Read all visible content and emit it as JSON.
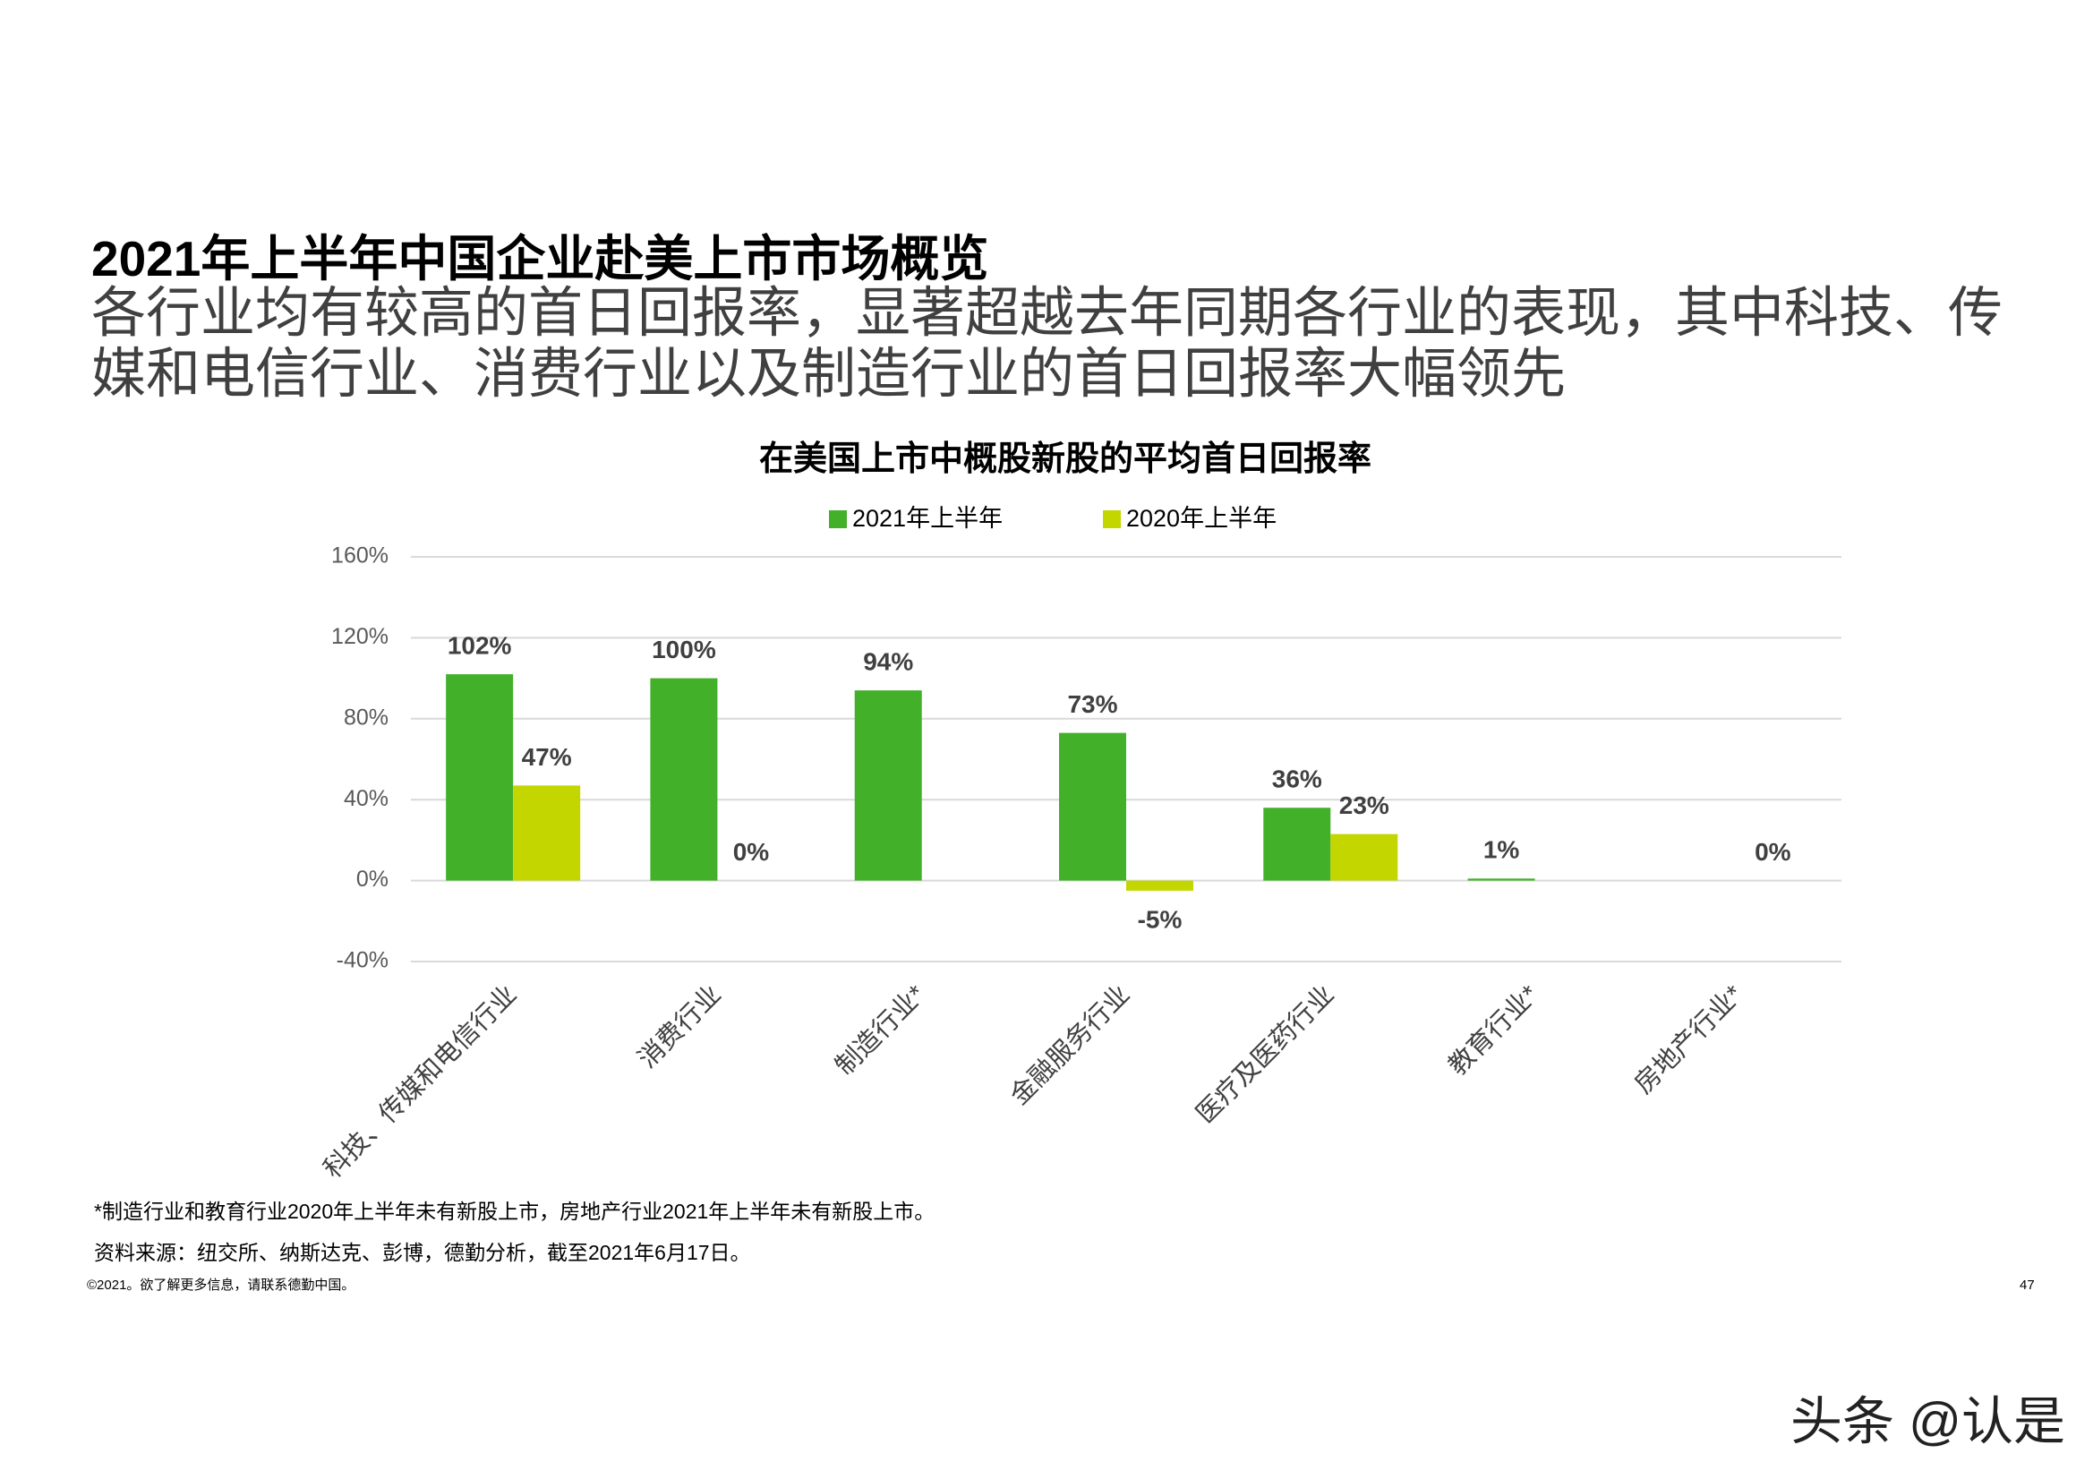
{
  "header": {
    "title": "2021年上半年中国企业赴美上市市场概览",
    "subtitle": "各行业均有较高的首日回报率，显著超越去年同期各行业的表现，其中科技、传媒和电信行业、消费行业以及制造行业的首日回报率大幅领先"
  },
  "chart_data": {
    "type": "bar",
    "title": "在美国上市中概股新股的平均首日回报率",
    "categories": [
      "科技、传媒和电信行业",
      "消费行业",
      "制造行业*",
      "金融服务行业",
      "医疗及医药行业",
      "教育行业*",
      "房地产行业*"
    ],
    "series": [
      {
        "name": "2021年上半年",
        "color": "#43b02a",
        "values": [
          102,
          100,
          94,
          73,
          36,
          1,
          null
        ],
        "value_labels": [
          "102%",
          "100%",
          "94%",
          "73%",
          "36%",
          "1%",
          null
        ]
      },
      {
        "name": "2020年上半年",
        "color": "#c4d600",
        "values": [
          47,
          0,
          null,
          -5,
          23,
          null,
          0
        ],
        "value_labels": [
          "47%",
          "0%",
          null,
          "-5%",
          "23%",
          null,
          "0%"
        ]
      }
    ],
    "ylim": [
      -40,
      160
    ],
    "yticks": [
      {
        "value": -40,
        "label": "-40%"
      },
      {
        "value": 0,
        "label": "0%"
      },
      {
        "value": 40,
        "label": "40%"
      },
      {
        "value": 80,
        "label": "80%"
      },
      {
        "value": 120,
        "label": "120%"
      },
      {
        "value": 160,
        "label": "160%"
      }
    ],
    "grid": true
  },
  "footer": {
    "note": "*制造行业和教育行业2020年上半年未有新股上市，房地产行业2021年上半年未有新股上市。",
    "source": "资料来源：纽交所、纳斯达克、彭博，德勤分析，截至2021年6月17日。",
    "copyright": "©2021。欲了解更多信息，请联系德勤中国。",
    "page_number": "47",
    "watermark": "头条 @认是"
  }
}
